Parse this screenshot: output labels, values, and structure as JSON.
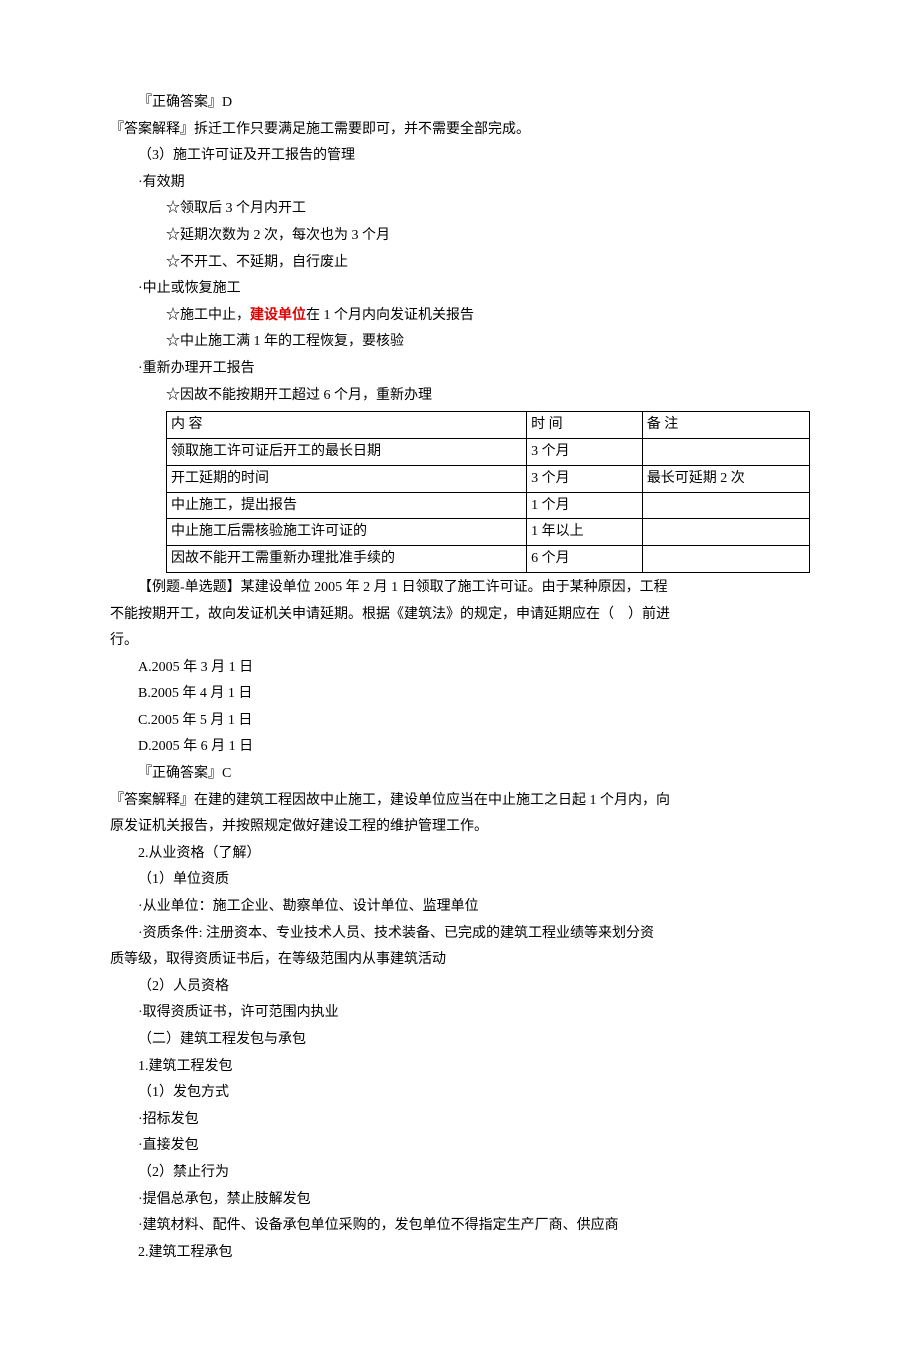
{
  "lines_top": [
    {
      "indent": "indent-1",
      "text": "『正确答案』D"
    },
    {
      "indent": "no-indent",
      "text": "『答案解释』拆迁工作只要满足施工需要即可，并不需要全部完成。"
    },
    {
      "indent": "indent-1",
      "text": "（3）施工许可证及开工报告的管理"
    },
    {
      "indent": "indent-1",
      "text": "·有效期"
    },
    {
      "indent": "indent-2",
      "text": "☆领取后 3 个月内开工"
    },
    {
      "indent": "indent-2",
      "text": "☆延期次数为 2 次，每次也为 3 个月"
    },
    {
      "indent": "indent-2",
      "text": "☆不开工、不延期，自行废止"
    },
    {
      "indent": "indent-1",
      "text": "·中止或恢复施工"
    },
    {
      "indent": "indent-2",
      "text": "☆施工中止，<span class=\"red-bold\">建设单位</span>在 1 个月内向发证机关报告"
    },
    {
      "indent": "indent-2",
      "text": "☆中止施工满 1 年的工程恢复，要核验"
    },
    {
      "indent": "indent-1",
      "text": "·重新办理开工报告"
    },
    {
      "indent": "indent-2",
      "text": "☆因故不能按期开工超过 6 个月，重新办理"
    }
  ],
  "table": {
    "header": {
      "c1": "内 容",
      "c2": "时 间",
      "c3": "备 注"
    },
    "rows": [
      {
        "c1": "领取施工许可证后开工的最长日期",
        "c2": "3 个月",
        "c3": ""
      },
      {
        "c1": "开工延期的时间",
        "c2": "3 个月",
        "c3": "最长可延期 2 次"
      },
      {
        "c1": "中止施工，提出报告",
        "c2": "1 个月",
        "c3": ""
      },
      {
        "c1": "中止施工后需核验施工许可证的",
        "c2": "1 年以上",
        "c3": ""
      },
      {
        "c1": "因故不能开工需重新办理批准手续的",
        "c2": "6 个月",
        "c3": ""
      }
    ]
  },
  "lines_bottom": [
    {
      "indent": "indent-1",
      "text": "【例题-单选题】某建设单位 2005 年 2 月 1 日领取了施工许可证。由于某种原因，工程"
    },
    {
      "indent": "no-indent",
      "text": "不能按期开工，故向发证机关申请延期。根据《建筑法》的规定，申请延期应在（　）前进"
    },
    {
      "indent": "no-indent",
      "text": "行。"
    },
    {
      "indent": "indent-1",
      "text": "A.2005 年 3 月 1 日"
    },
    {
      "indent": "indent-1",
      "text": "B.2005 年 4 月 1 日"
    },
    {
      "indent": "indent-1",
      "text": "C.2005 年 5 月 1 日"
    },
    {
      "indent": "indent-1",
      "text": "D.2005 年 6 月 1 日"
    },
    {
      "indent": "indent-1",
      "text": "『正确答案』C"
    },
    {
      "indent": "no-indent",
      "text": "『答案解释』在建的建筑工程因故中止施工，建设单位应当在中止施工之日起 1 个月内，向"
    },
    {
      "indent": "no-indent",
      "text": "原发证机关报告，并按照规定做好建设工程的维护管理工作。"
    },
    {
      "indent": "indent-1",
      "text": "2.从业资格（了解）"
    },
    {
      "indent": "indent-1",
      "text": "（1）单位资质"
    },
    {
      "indent": "indent-1",
      "text": "·从业单位：施工企业、勘察单位、设计单位、监理单位"
    },
    {
      "indent": "indent-1",
      "text": "·资质条件: 注册资本、专业技术人员、技术装备、已完成的建筑工程业绩等来划分资"
    },
    {
      "indent": "no-indent",
      "text": "质等级，取得资质证书后，在等级范围内从事建筑活动"
    },
    {
      "indent": "indent-1",
      "text": "（2）人员资格"
    },
    {
      "indent": "indent-1",
      "text": "·取得资质证书，许可范围内执业"
    },
    {
      "indent": "indent-1",
      "text": "（二）建筑工程发包与承包"
    },
    {
      "indent": "indent-1",
      "text": "1.建筑工程发包"
    },
    {
      "indent": "indent-1",
      "text": "（1）发包方式"
    },
    {
      "indent": "indent-1",
      "text": "·招标发包"
    },
    {
      "indent": "indent-1",
      "text": "·直接发包"
    },
    {
      "indent": "indent-1",
      "text": "（2）禁止行为"
    },
    {
      "indent": "indent-1",
      "text": "·提倡总承包，禁止肢解发包"
    },
    {
      "indent": "indent-1",
      "text": "·建筑材料、配件、设备承包单位采购的，发包单位不得指定生产厂商、供应商"
    },
    {
      "indent": "indent-1",
      "text": "2.建筑工程承包"
    }
  ]
}
